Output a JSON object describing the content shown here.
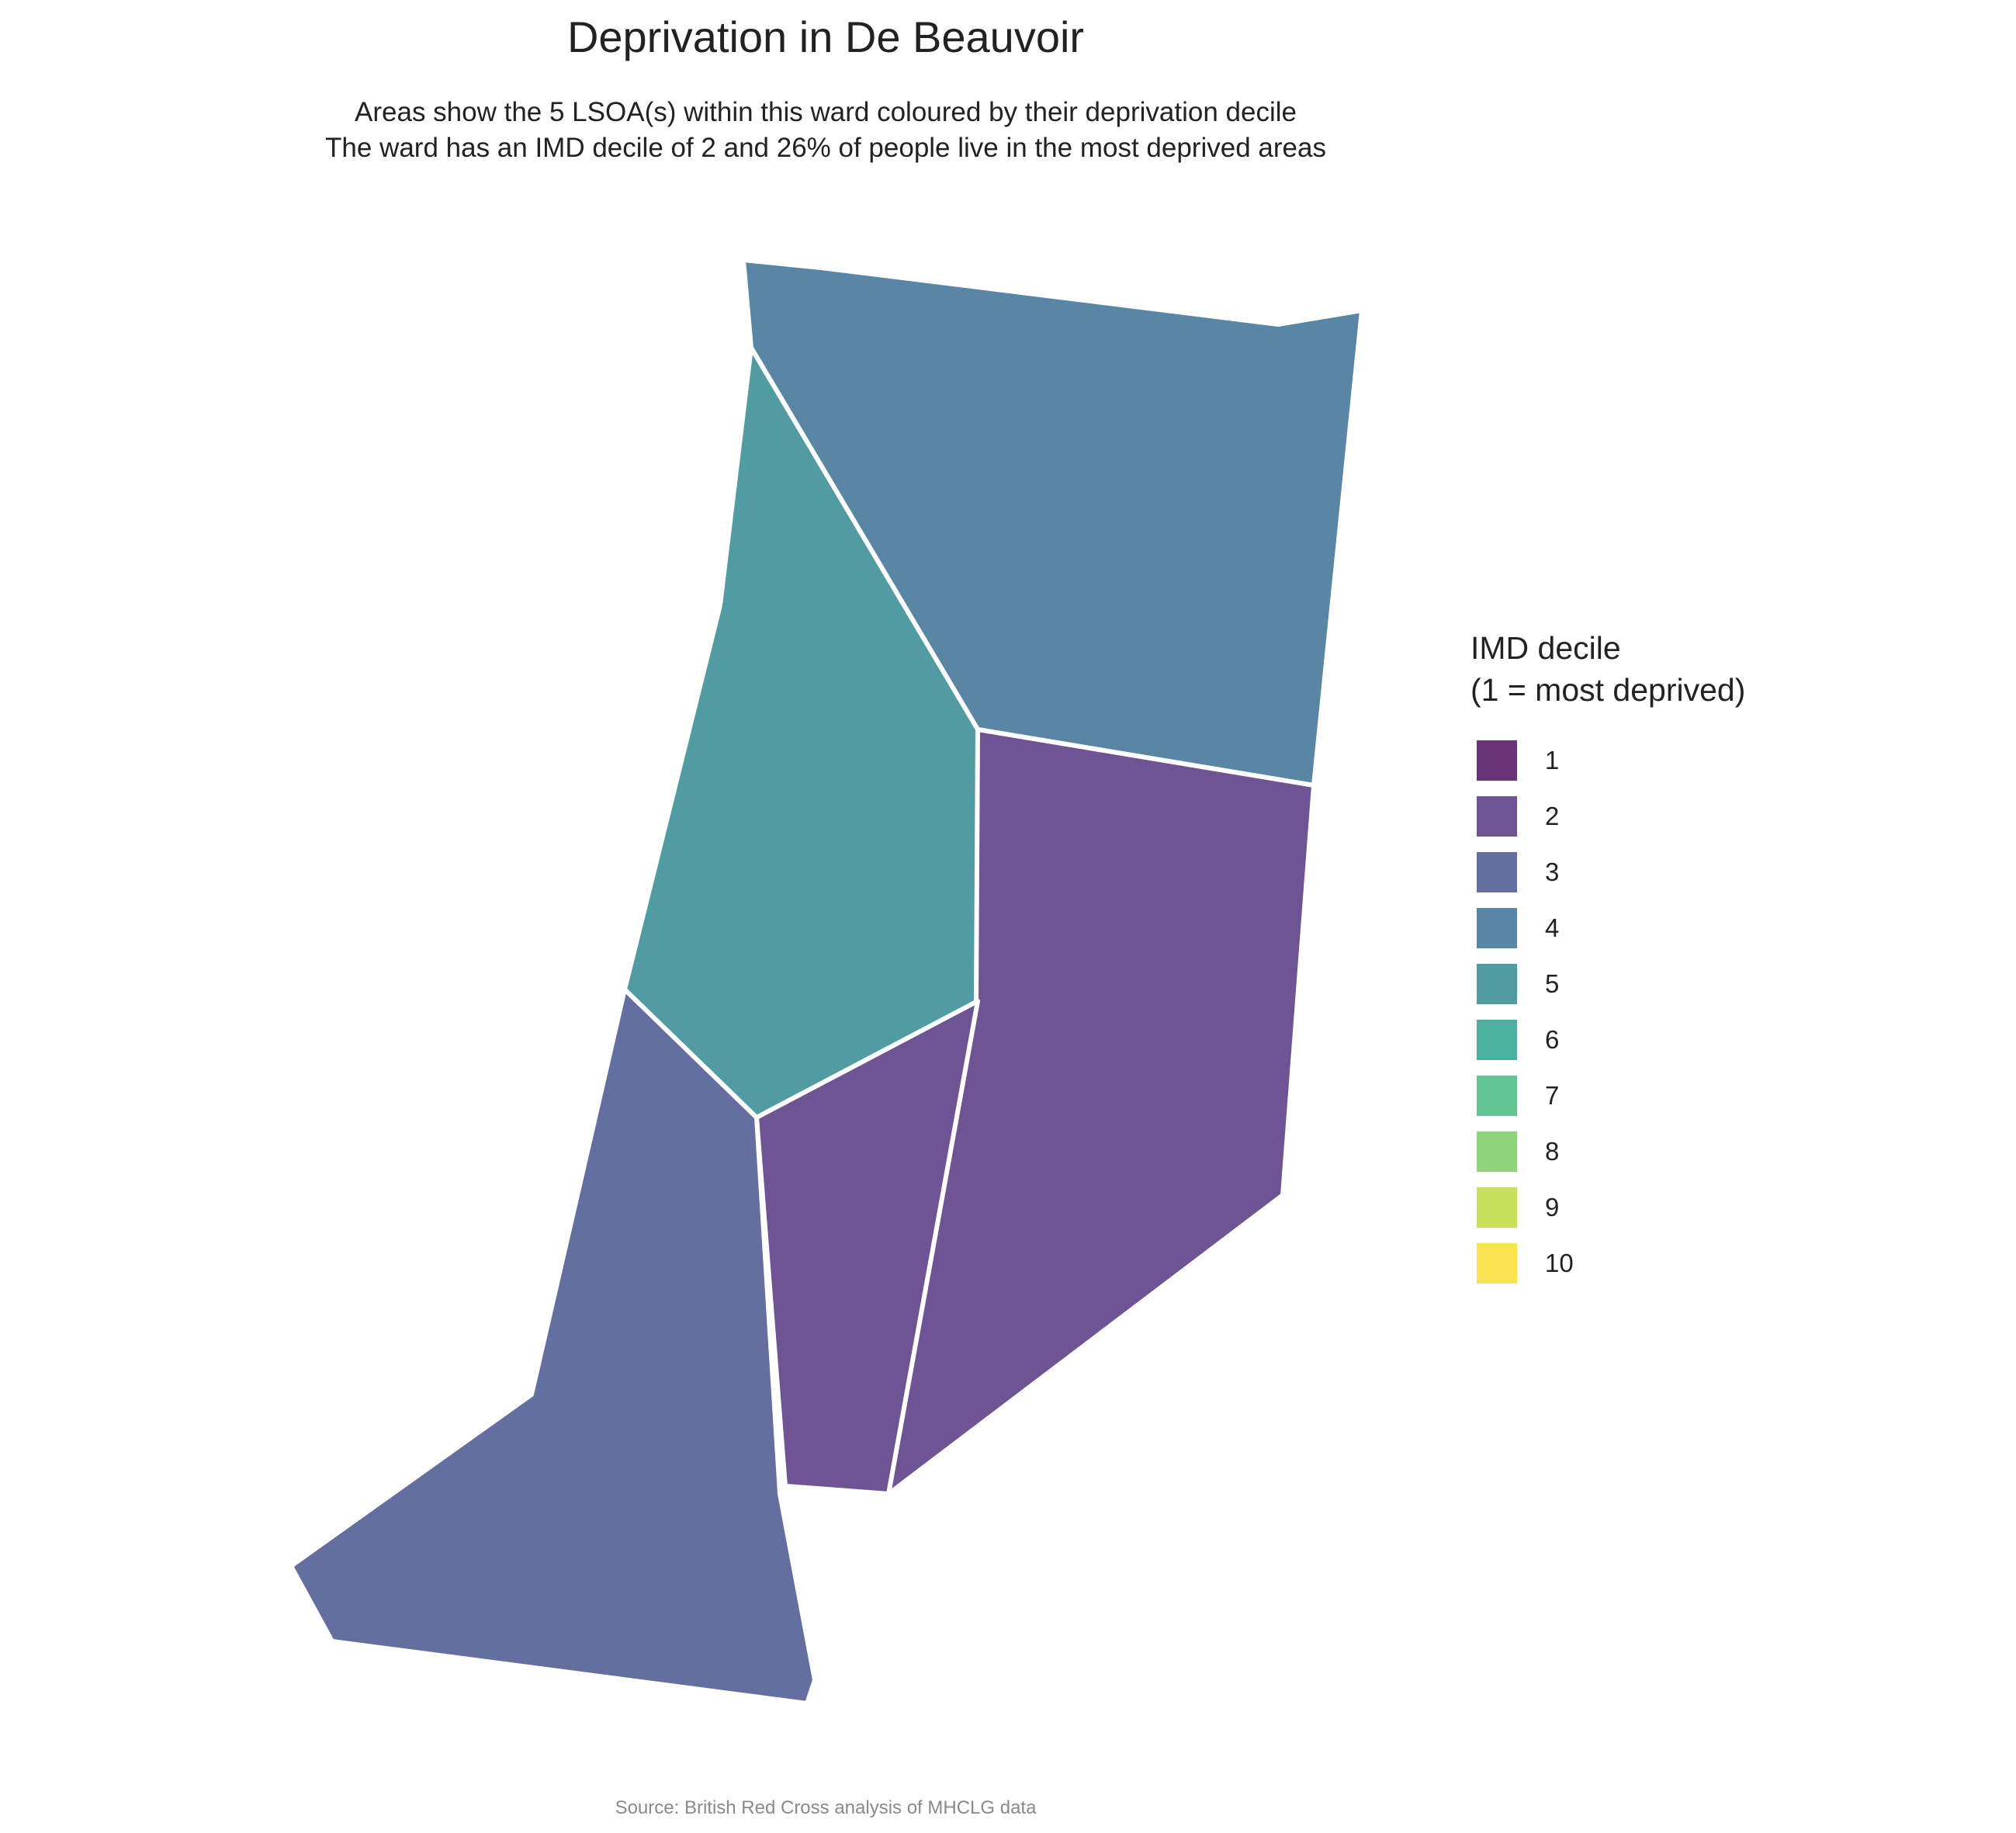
{
  "title": "Deprivation in De Beauvoir",
  "subtitle_line1": "Areas show the 5 LSOA(s) within this ward coloured by their deprivation decile",
  "subtitle_line2": "The ward has an IMD decile of 2 and 26% of people live in the most deprived areas",
  "caption": "Source: British Red Cross analysis of MHCLG data",
  "legend": {
    "title_line1": "IMD decile",
    "title_line2": "(1 = most deprived)",
    "items": [
      {
        "label": "1",
        "color": "#6a3577"
      },
      {
        "label": "2",
        "color": "#6e5493"
      },
      {
        "label": "3",
        "color": "#646e9f"
      },
      {
        "label": "4",
        "color": "#5886a4"
      },
      {
        "label": "5",
        "color": "#519ba3"
      },
      {
        "label": "6",
        "color": "#4db09f"
      },
      {
        "label": "7",
        "color": "#62c492"
      },
      {
        "label": "8",
        "color": "#8fd37b"
      },
      {
        "label": "9",
        "color": "#c8e05b"
      },
      {
        "label": "10",
        "color": "#f9e552"
      }
    ]
  },
  "map": {
    "areas": [
      {
        "name": "lsoa-north",
        "decile": 4,
        "color": "#5886a4"
      },
      {
        "name": "lsoa-central-west",
        "decile": 5,
        "color": "#519ba3"
      },
      {
        "name": "lsoa-east",
        "decile": 2,
        "color": "#6e5493"
      },
      {
        "name": "lsoa-south-central",
        "decile": 2,
        "color": "#6e5493"
      },
      {
        "name": "lsoa-south-west",
        "decile": 3,
        "color": "#646e9f"
      }
    ]
  }
}
